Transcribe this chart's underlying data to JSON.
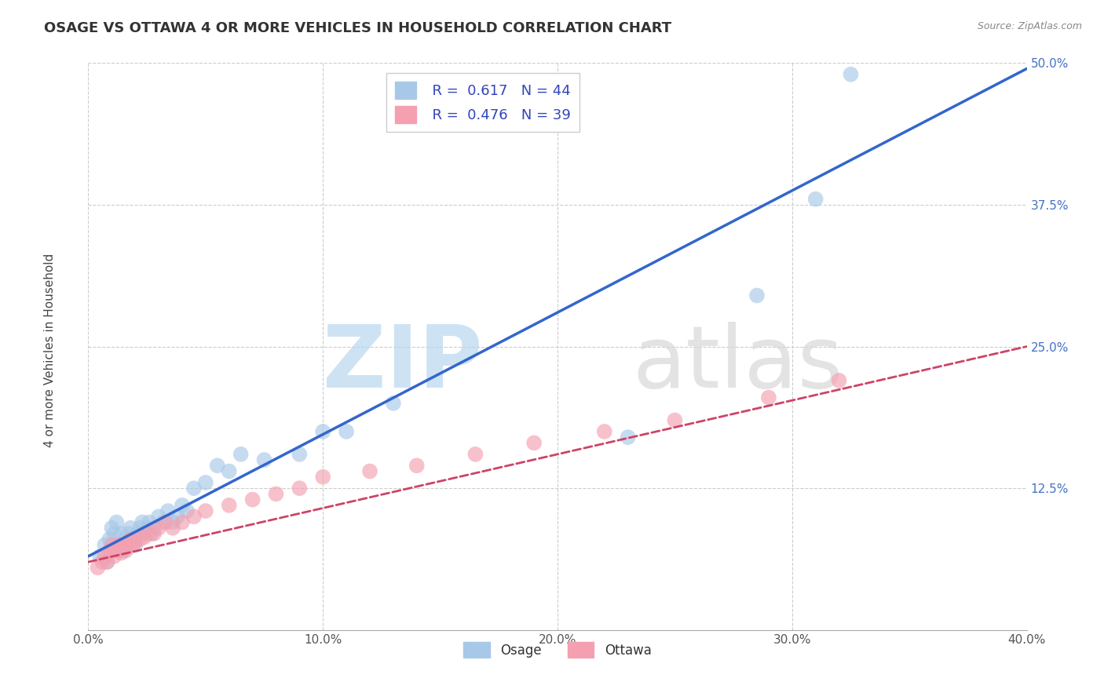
{
  "title": "OSAGE VS OTTAWA 4 OR MORE VEHICLES IN HOUSEHOLD CORRELATION CHART",
  "source": "Source: ZipAtlas.com",
  "xlabel": "",
  "ylabel": "4 or more Vehicles in Household",
  "xlim": [
    0.0,
    0.4
  ],
  "ylim": [
    0.0,
    0.5
  ],
  "xticks": [
    0.0,
    0.1,
    0.2,
    0.3,
    0.4
  ],
  "xtick_labels": [
    "0.0%",
    "10.0%",
    "20.0%",
    "30.0%",
    "40.0%"
  ],
  "yticks": [
    0.0,
    0.125,
    0.25,
    0.375,
    0.5
  ],
  "ytick_labels": [
    "",
    "12.5%",
    "25.0%",
    "37.5%",
    "50.0%"
  ],
  "osage_R": 0.617,
  "osage_N": 44,
  "ottawa_R": 0.476,
  "ottawa_N": 39,
  "osage_color": "#a8c8e8",
  "osage_line_color": "#3366cc",
  "ottawa_color": "#f4a0b0",
  "ottawa_line_color": "#cc4466",
  "background_color": "#ffffff",
  "grid_color": "#cccccc",
  "osage_x": [
    0.005,
    0.007,
    0.008,
    0.009,
    0.01,
    0.011,
    0.012,
    0.013,
    0.014,
    0.015,
    0.016,
    0.017,
    0.018,
    0.019,
    0.02,
    0.021,
    0.022,
    0.023,
    0.024,
    0.025,
    0.026,
    0.027,
    0.028,
    0.03,
    0.032,
    0.034,
    0.036,
    0.038,
    0.04,
    0.042,
    0.045,
    0.05,
    0.055,
    0.06,
    0.065,
    0.075,
    0.09,
    0.1,
    0.11,
    0.13,
    0.23,
    0.285,
    0.31,
    0.325
  ],
  "osage_y": [
    0.065,
    0.075,
    0.06,
    0.08,
    0.09,
    0.085,
    0.095,
    0.075,
    0.085,
    0.07,
    0.08,
    0.085,
    0.09,
    0.08,
    0.075,
    0.085,
    0.09,
    0.095,
    0.085,
    0.09,
    0.095,
    0.085,
    0.09,
    0.1,
    0.095,
    0.105,
    0.095,
    0.1,
    0.11,
    0.105,
    0.125,
    0.13,
    0.145,
    0.14,
    0.155,
    0.15,
    0.155,
    0.175,
    0.175,
    0.2,
    0.17,
    0.295,
    0.38,
    0.49
  ],
  "ottawa_x": [
    0.004,
    0.006,
    0.007,
    0.008,
    0.009,
    0.01,
    0.011,
    0.012,
    0.013,
    0.014,
    0.015,
    0.016,
    0.017,
    0.018,
    0.019,
    0.02,
    0.022,
    0.024,
    0.026,
    0.028,
    0.03,
    0.033,
    0.036,
    0.04,
    0.045,
    0.05,
    0.06,
    0.07,
    0.08,
    0.09,
    0.1,
    0.12,
    0.14,
    0.165,
    0.19,
    0.22,
    0.25,
    0.29,
    0.32
  ],
  "ottawa_y": [
    0.055,
    0.06,
    0.065,
    0.06,
    0.07,
    0.075,
    0.065,
    0.07,
    0.075,
    0.068,
    0.075,
    0.07,
    0.075,
    0.08,
    0.075,
    0.078,
    0.08,
    0.082,
    0.085,
    0.085,
    0.09,
    0.095,
    0.09,
    0.095,
    0.1,
    0.105,
    0.11,
    0.115,
    0.12,
    0.125,
    0.135,
    0.14,
    0.145,
    0.155,
    0.165,
    0.175,
    0.185,
    0.205,
    0.22
  ],
  "osage_trend_x0": 0.0,
  "osage_trend_x1": 0.4,
  "osage_trend_y0": 0.065,
  "osage_trend_y1": 0.495,
  "ottawa_trend_x0": 0.0,
  "ottawa_trend_x1": 0.4,
  "ottawa_trend_y0": 0.06,
  "ottawa_trend_y1": 0.25
}
